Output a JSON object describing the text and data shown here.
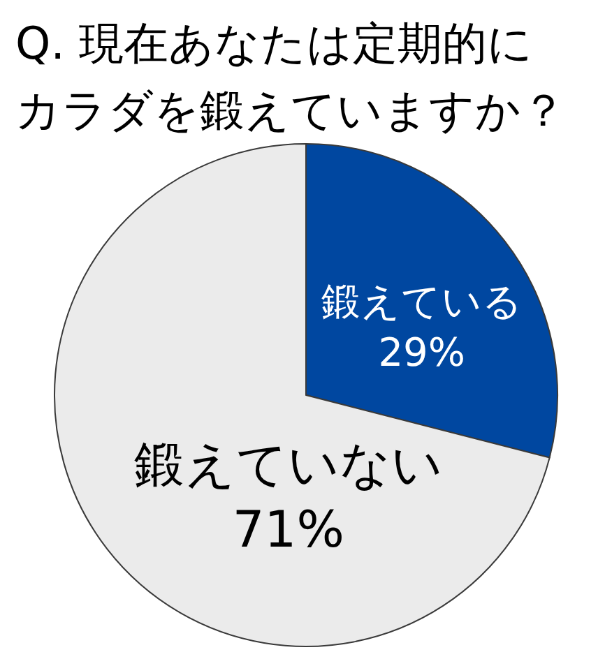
{
  "chart_data": {
    "type": "pie",
    "title": "Q. 現在あなたは定期的にカラダを鍛えていますか？",
    "categories": [
      "鍛えている",
      "鍛えていない"
    ],
    "values": [
      29,
      71
    ],
    "colors": [
      "#0047a0",
      "#ebebeb"
    ],
    "value_labels": [
      "29%",
      "71%"
    ],
    "legend": false
  }
}
